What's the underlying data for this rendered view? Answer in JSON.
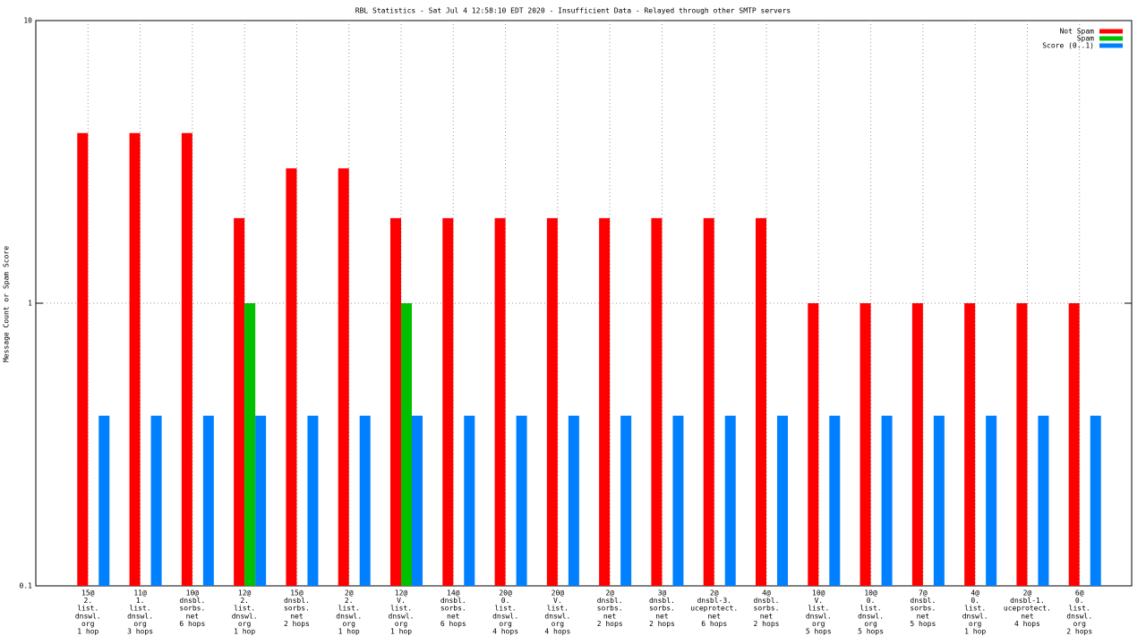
{
  "chart_data": {
    "type": "bar",
    "title": "RBL Statistics - Sat Jul  4 12:58:10 EDT 2020 - Insufficient Data - Relayed through other SMTP servers",
    "y_label": "Message Count or Spam Score",
    "categories": [
      [
        "15@",
        "2.",
        "list.",
        "dnswl.",
        "org",
        "1 hop"
      ],
      [
        "11@",
        "1.",
        "list.",
        "dnswl.",
        "org",
        "3 hops"
      ],
      [
        "10@",
        "dnsbl.",
        "sorbs.",
        "net",
        "6 hops"
      ],
      [
        "12@",
        "2.",
        "list.",
        "dnswl.",
        "org",
        "1 hop"
      ],
      [
        "15@",
        "dnsbl.",
        "sorbs.",
        "net",
        "2 hops"
      ],
      [
        "2@",
        "2.",
        "list.",
        "dnswl.",
        "org",
        "1 hop"
      ],
      [
        "12@",
        "V.",
        "list.",
        "dnswl.",
        "org",
        "1 hop"
      ],
      [
        "14@",
        "dnsbl.",
        "sorbs.",
        "net",
        "6 hops"
      ],
      [
        "20@",
        "0.",
        "list.",
        "dnswl.",
        "org",
        "4 hops"
      ],
      [
        "20@",
        "V.",
        "list.",
        "dnswl.",
        "org",
        "4 hops"
      ],
      [
        "2@",
        "dnsbl.",
        "sorbs.",
        "net",
        "2 hops"
      ],
      [
        "3@",
        "dnsbl.",
        "sorbs.",
        "net",
        "2 hops"
      ],
      [
        "2@",
        "dnsbl-3.",
        "uceprotect.",
        "net",
        "6 hops"
      ],
      [
        "4@",
        "dnsbl.",
        "sorbs.",
        "net",
        "2 hops"
      ],
      [
        "10@",
        "V.",
        "list.",
        "dnswl.",
        "org",
        "5 hops"
      ],
      [
        "10@",
        "0.",
        "list.",
        "dnswl.",
        "org",
        "5 hops"
      ],
      [
        "7@",
        "dnsbl.",
        "sorbs.",
        "net",
        "5 hops"
      ],
      [
        "4@",
        "0.",
        "list.",
        "dnswl.",
        "org",
        "1 hop"
      ],
      [
        "2@",
        "dnsbl-1.",
        "uceprotect.",
        "net",
        "4 hops"
      ],
      [
        "6@",
        "0.",
        "list.",
        "dnswl.",
        "org",
        "2 hops"
      ]
    ],
    "series": [
      {
        "name": "Not Spam",
        "color": "#ff0000",
        "values": [
          4,
          4,
          4,
          2,
          3,
          3,
          2,
          2,
          2,
          2,
          2,
          2,
          2,
          2,
          1,
          1,
          1,
          1,
          1,
          1
        ]
      },
      {
        "name": "Spam",
        "color": "#00c000",
        "values": [
          null,
          null,
          null,
          1,
          null,
          null,
          1,
          null,
          null,
          null,
          null,
          null,
          null,
          null,
          null,
          null,
          null,
          null,
          null,
          null
        ]
      },
      {
        "name": "Score (0..1)",
        "color": "#0080ff",
        "values": [
          0.4,
          0.4,
          0.4,
          0.4,
          0.4,
          0.4,
          0.4,
          0.4,
          0.4,
          0.4,
          0.4,
          0.4,
          0.4,
          0.4,
          0.4,
          0.4,
          0.4,
          0.4,
          0.4,
          0.4
        ]
      }
    ],
    "ylim": [
      0.1,
      10
    ],
    "yticks": [
      0.1,
      1,
      10
    ],
    "log_y": true,
    "grid": true,
    "legend": "top-right"
  }
}
